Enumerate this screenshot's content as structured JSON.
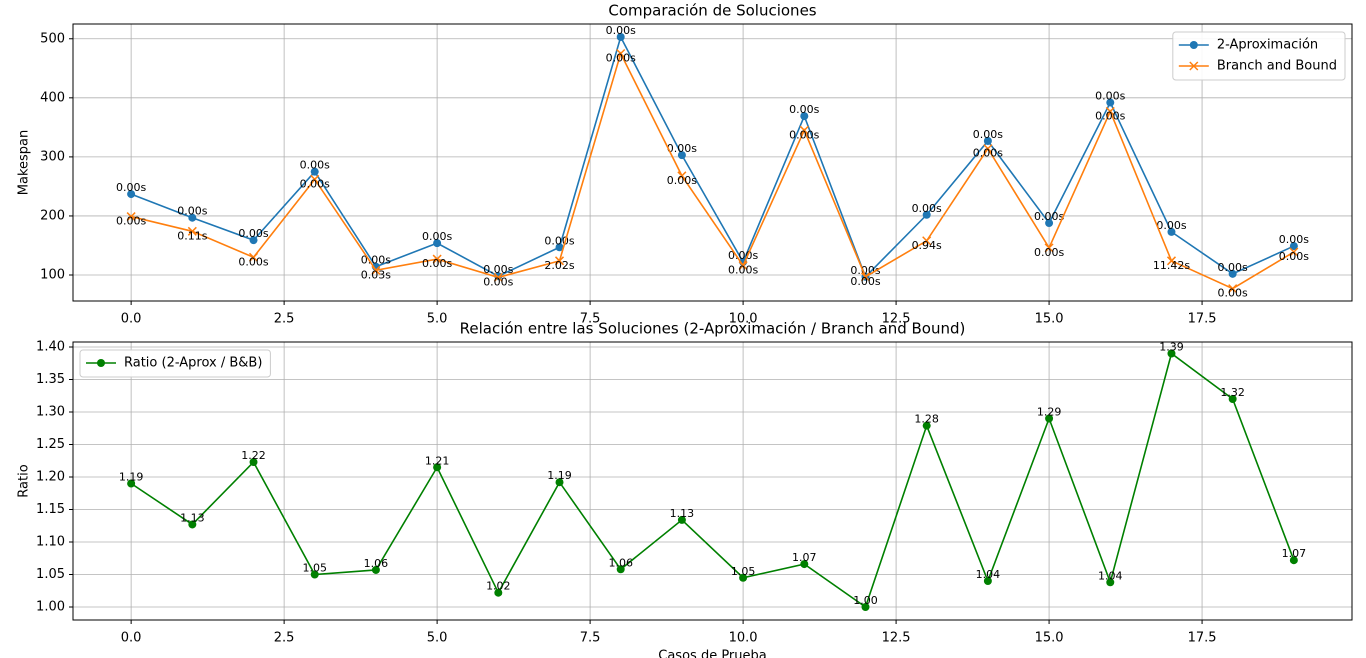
{
  "chart_data": [
    {
      "type": "line",
      "title": "Comparación de Soluciones",
      "ylabel": "Makespan",
      "x": [
        0,
        1,
        2,
        3,
        4,
        5,
        6,
        7,
        8,
        9,
        10,
        11,
        12,
        13,
        14,
        15,
        16,
        17,
        18,
        19
      ],
      "xlim": [
        -0.95,
        19.95
      ],
      "xticks": [
        {
          "value": 0,
          "label": "0.0"
        },
        {
          "value": 2.5,
          "label": "2.5"
        },
        {
          "value": 5,
          "label": "5.0"
        },
        {
          "value": 7.5,
          "label": "7.5"
        },
        {
          "value": 10,
          "label": "10.0"
        },
        {
          "value": 12.5,
          "label": "12.5"
        },
        {
          "value": 15,
          "label": "15.0"
        },
        {
          "value": 17.5,
          "label": "17.5"
        }
      ],
      "ylim": [
        56,
        525
      ],
      "yticks": [
        100,
        200,
        300,
        400,
        500
      ],
      "grid": true,
      "legend": "upper right",
      "series": [
        {
          "name": "2-Aproximación",
          "color": "#1f77b4",
          "marker": "o",
          "label_side": "above",
          "values": [
            237,
            197,
            159,
            275,
            114,
            154,
            98,
            147,
            503,
            303,
            122,
            369,
            97,
            202,
            327,
            188,
            392,
            173,
            102,
            149
          ],
          "point_labels": [
            "0.00s",
            "0.00s",
            "0.00s",
            "0.00s",
            "0.00s",
            "0.00s",
            "0.00s",
            "0.00s",
            "0.00s",
            "0.00s",
            "0.00s",
            "0.00s",
            "0.00s",
            "0.00s",
            "0.00s",
            "0.00s",
            "0.00s",
            "0.00s",
            "0.00s",
            "0.00s"
          ]
        },
        {
          "name": "Branch and Bound",
          "color": "#ff7f0e",
          "marker": "x",
          "label_side": "below",
          "values": [
            199,
            174,
            130,
            262,
            108,
            127,
            96,
            124,
            475,
            268,
            116,
            345,
            97,
            158,
            314,
            146,
            377,
            124,
            77,
            139
          ],
          "point_labels": [
            "0.00s",
            "0.11s",
            "0.00s",
            "0.00s",
            "0.03s",
            "0.00s",
            "0.00s",
            "2.02s",
            "0.00s",
            "0.00s",
            "0.00s",
            "0.00s",
            "0.00s",
            "0.94s",
            "0.00s",
            "0.00s",
            "0.00s",
            "11.42s",
            "0.00s",
            "0.00s"
          ]
        }
      ]
    },
    {
      "type": "line",
      "title": "Relación entre las Soluciones (2-Aproximación / Branch and Bound)",
      "ylabel": "Ratio",
      "xlabel": "Casos de Prueba",
      "x": [
        0,
        1,
        2,
        3,
        4,
        5,
        6,
        7,
        8,
        9,
        10,
        11,
        12,
        13,
        14,
        15,
        16,
        17,
        18,
        19
      ],
      "xlim": [
        -0.95,
        19.95
      ],
      "xticks": [
        {
          "value": 0,
          "label": "0.0"
        },
        {
          "value": 2.5,
          "label": "2.5"
        },
        {
          "value": 5,
          "label": "5.0"
        },
        {
          "value": 7.5,
          "label": "7.5"
        },
        {
          "value": 10,
          "label": "10.0"
        },
        {
          "value": 12.5,
          "label": "12.5"
        },
        {
          "value": 15,
          "label": "15.0"
        },
        {
          "value": 17.5,
          "label": "17.5"
        }
      ],
      "ylim": [
        0.98,
        1.4077
      ],
      "yticks": [
        {
          "value": 1.0,
          "label": "1.00"
        },
        {
          "value": 1.05,
          "label": "1.05"
        },
        {
          "value": 1.1,
          "label": "1.10"
        },
        {
          "value": 1.15,
          "label": "1.15"
        },
        {
          "value": 1.2,
          "label": "1.20"
        },
        {
          "value": 1.25,
          "label": "1.25"
        },
        {
          "value": 1.3,
          "label": "1.30"
        },
        {
          "value": 1.35,
          "label": "1.35"
        },
        {
          "value": 1.4,
          "label": "1.40"
        }
      ],
      "grid": true,
      "legend": "upper left",
      "series": [
        {
          "name": "Ratio (2-Aprox / B&B)",
          "color": "#008000",
          "marker": "o",
          "label_side": "above",
          "values": [
            1.19,
            1.127,
            1.223,
            1.05,
            1.057,
            1.215,
            1.022,
            1.192,
            1.058,
            1.134,
            1.045,
            1.066,
            1.0,
            1.279,
            1.04,
            1.29,
            1.038,
            1.39,
            1.32,
            1.072
          ],
          "value_labels": [
            "1.19",
            "1.13",
            "1.22",
            "1.05",
            "1.06",
            "1.21",
            "1.02",
            "1.19",
            "1.06",
            "1.13",
            "1.05",
            "1.07",
            "1.00",
            "1.28",
            "1.04",
            "1.29",
            "1.04",
            "1.39",
            "1.32",
            "1.07"
          ]
        }
      ]
    }
  ]
}
